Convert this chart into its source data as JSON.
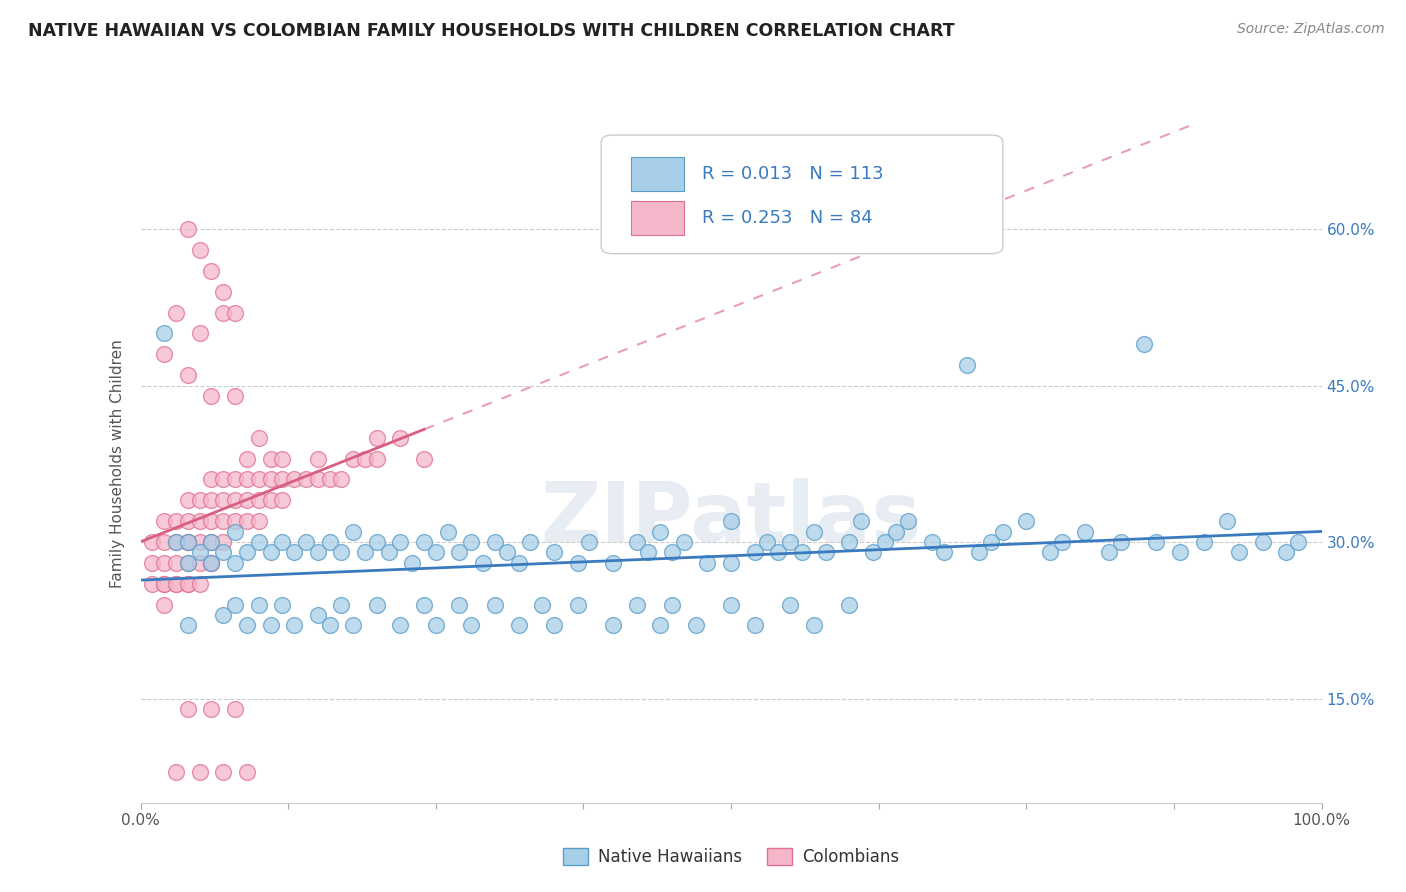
{
  "title": "NATIVE HAWAIIAN VS COLOMBIAN FAMILY HOUSEHOLDS WITH CHILDREN CORRELATION CHART",
  "source": "Source: ZipAtlas.com",
  "ylabel": "Family Households with Children",
  "background_color": "#ffffff",
  "grid_color": "#cccccc",
  "watermark": "ZIPatlas",
  "blue_scatter_color": "#a8cfe8",
  "blue_scatter_edge": "#5b9dc9",
  "pink_scatter_color": "#f5b8cb",
  "pink_scatter_edge": "#e07090",
  "blue_line_color": "#3a7abf",
  "pink_line_color": "#d95f82",
  "blue_R": 0.013,
  "blue_N": 113,
  "pink_R": 0.253,
  "pink_N": 84,
  "legend_label_blue": "Native Hawaiians",
  "legend_label_pink": "Colombians",
  "tick_color": "#3a7abf",
  "xlim": [
    0.0,
    1.0
  ],
  "ylim": [
    0.05,
    0.7
  ],
  "xtick_labels": [
    "0.0%",
    "100.0%"
  ],
  "ytick_labels_right": [
    "15.0%",
    "30.0%",
    "45.0%",
    "60.0%"
  ],
  "ytick_vals": [
    0.15,
    0.3,
    0.45,
    0.6
  ],
  "blue_x": [
    0.02,
    0.03,
    0.04,
    0.04,
    0.05,
    0.06,
    0.06,
    0.07,
    0.08,
    0.08,
    0.09,
    0.1,
    0.11,
    0.12,
    0.13,
    0.14,
    0.15,
    0.16,
    0.17,
    0.18,
    0.19,
    0.2,
    0.21,
    0.22,
    0.23,
    0.24,
    0.25,
    0.26,
    0.27,
    0.28,
    0.29,
    0.3,
    0.31,
    0.32,
    0.33,
    0.35,
    0.37,
    0.38,
    0.4,
    0.42,
    0.43,
    0.44,
    0.45,
    0.46,
    0.48,
    0.5,
    0.5,
    0.52,
    0.53,
    0.54,
    0.55,
    0.56,
    0.57,
    0.58,
    0.6,
    0.61,
    0.62,
    0.63,
    0.64,
    0.65,
    0.67,
    0.68,
    0.7,
    0.71,
    0.72,
    0.73,
    0.75,
    0.77,
    0.78,
    0.8,
    0.82,
    0.83,
    0.85,
    0.86,
    0.88,
    0.9,
    0.92,
    0.93,
    0.95,
    0.97,
    0.98,
    0.04,
    0.07,
    0.08,
    0.09,
    0.1,
    0.11,
    0.12,
    0.13,
    0.15,
    0.16,
    0.17,
    0.18,
    0.2,
    0.22,
    0.24,
    0.25,
    0.27,
    0.28,
    0.3,
    0.32,
    0.34,
    0.35,
    0.37,
    0.4,
    0.42,
    0.44,
    0.45,
    0.47,
    0.5,
    0.52,
    0.55,
    0.57,
    0.6
  ],
  "blue_y": [
    0.5,
    0.3,
    0.3,
    0.28,
    0.29,
    0.3,
    0.28,
    0.29,
    0.31,
    0.28,
    0.29,
    0.3,
    0.29,
    0.3,
    0.29,
    0.3,
    0.29,
    0.3,
    0.29,
    0.31,
    0.29,
    0.3,
    0.29,
    0.3,
    0.28,
    0.3,
    0.29,
    0.31,
    0.29,
    0.3,
    0.28,
    0.3,
    0.29,
    0.28,
    0.3,
    0.29,
    0.28,
    0.3,
    0.28,
    0.3,
    0.29,
    0.31,
    0.29,
    0.3,
    0.28,
    0.32,
    0.28,
    0.29,
    0.3,
    0.29,
    0.3,
    0.29,
    0.31,
    0.29,
    0.3,
    0.32,
    0.29,
    0.3,
    0.31,
    0.32,
    0.3,
    0.29,
    0.47,
    0.29,
    0.3,
    0.31,
    0.32,
    0.29,
    0.3,
    0.31,
    0.29,
    0.3,
    0.49,
    0.3,
    0.29,
    0.3,
    0.32,
    0.29,
    0.3,
    0.29,
    0.3,
    0.22,
    0.23,
    0.24,
    0.22,
    0.24,
    0.22,
    0.24,
    0.22,
    0.23,
    0.22,
    0.24,
    0.22,
    0.24,
    0.22,
    0.24,
    0.22,
    0.24,
    0.22,
    0.24,
    0.22,
    0.24,
    0.22,
    0.24,
    0.22,
    0.24,
    0.22,
    0.24,
    0.22,
    0.24,
    0.22,
    0.24,
    0.22,
    0.24
  ],
  "pink_x": [
    0.01,
    0.01,
    0.01,
    0.02,
    0.02,
    0.02,
    0.02,
    0.02,
    0.03,
    0.03,
    0.03,
    0.03,
    0.04,
    0.04,
    0.04,
    0.04,
    0.04,
    0.05,
    0.05,
    0.05,
    0.05,
    0.06,
    0.06,
    0.06,
    0.06,
    0.06,
    0.07,
    0.07,
    0.07,
    0.07,
    0.08,
    0.08,
    0.08,
    0.09,
    0.09,
    0.09,
    0.1,
    0.1,
    0.1,
    0.11,
    0.11,
    0.12,
    0.12,
    0.13,
    0.14,
    0.15,
    0.16,
    0.17,
    0.18,
    0.19,
    0.2,
    0.22,
    0.24,
    0.02,
    0.03,
    0.04,
    0.05,
    0.06,
    0.07,
    0.08,
    0.09,
    0.1,
    0.11,
    0.12,
    0.04,
    0.05,
    0.06,
    0.07,
    0.08,
    0.04,
    0.06,
    0.08,
    0.03,
    0.05,
    0.07,
    0.09,
    0.04,
    0.06,
    0.15,
    0.2,
    0.02,
    0.03,
    0.04,
    0.05
  ],
  "pink_y": [
    0.3,
    0.28,
    0.26,
    0.32,
    0.3,
    0.28,
    0.26,
    0.24,
    0.32,
    0.3,
    0.28,
    0.26,
    0.34,
    0.32,
    0.3,
    0.28,
    0.26,
    0.34,
    0.32,
    0.3,
    0.28,
    0.36,
    0.34,
    0.32,
    0.3,
    0.28,
    0.36,
    0.34,
    0.32,
    0.3,
    0.36,
    0.34,
    0.32,
    0.36,
    0.34,
    0.32,
    0.36,
    0.34,
    0.32,
    0.36,
    0.34,
    0.36,
    0.34,
    0.36,
    0.36,
    0.36,
    0.36,
    0.36,
    0.38,
    0.38,
    0.4,
    0.4,
    0.38,
    0.48,
    0.52,
    0.46,
    0.5,
    0.44,
    0.52,
    0.44,
    0.38,
    0.4,
    0.38,
    0.38,
    0.6,
    0.58,
    0.56,
    0.54,
    0.52,
    0.14,
    0.14,
    0.14,
    0.08,
    0.08,
    0.08,
    0.08,
    0.3,
    0.28,
    0.38,
    0.38,
    0.26,
    0.26,
    0.26,
    0.26
  ]
}
